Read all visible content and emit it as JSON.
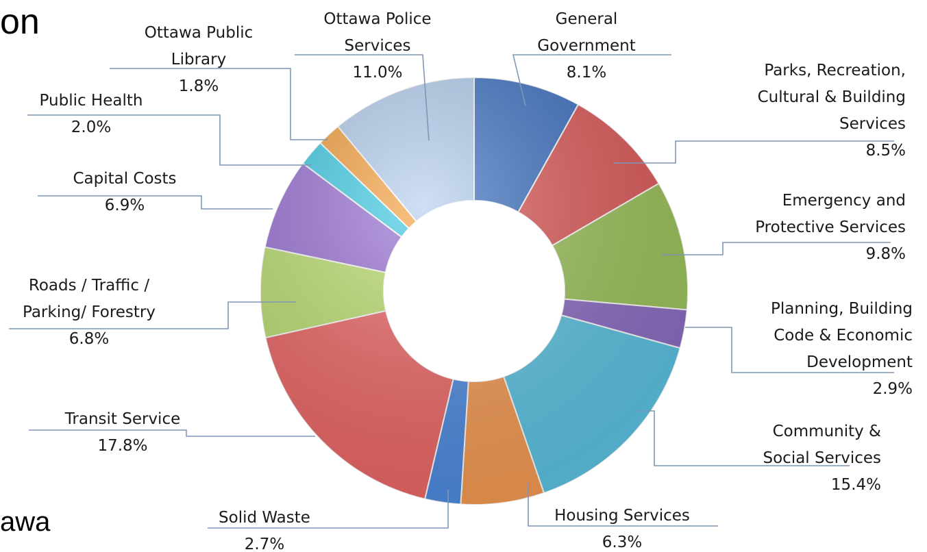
{
  "fragments": {
    "top": "on",
    "bottom": "awa"
  },
  "chart_data": {
    "type": "pie",
    "style": "donut",
    "title": "",
    "legend": "none",
    "slices": [
      {
        "name": "General Government",
        "value": 8.1,
        "label": "8.1%",
        "color": "#3f73c4"
      },
      {
        "name": "Parks, Recreation, Cultural & Building Services",
        "value": 8.5,
        "label": "8.5%",
        "color": "#e05a5a"
      },
      {
        "name": "Emergency and Protective Services",
        "value": 9.8,
        "label": "9.8%",
        "color": "#9cc45a"
      },
      {
        "name": "Planning, Building Code & Economic Development",
        "value": 2.9,
        "label": "2.9%",
        "color": "#8c6cc4"
      },
      {
        "name": "Community & Social Services",
        "value": 15.4,
        "label": "15.4%",
        "color": "#5cc3e3"
      },
      {
        "name": "Housing Services",
        "value": 6.3,
        "label": "6.3%",
        "color": "#f59a52"
      },
      {
        "name": "Solid Waste",
        "value": 2.7,
        "label": "2.7%",
        "color": "#4d8ae0"
      },
      {
        "name": "Transit Service",
        "value": 17.8,
        "label": "17.8%",
        "color": "#ee6666"
      },
      {
        "name": "Roads / Traffic / Parking/ Forestry",
        "value": 6.8,
        "label": "6.8%",
        "color": "#bde070"
      },
      {
        "name": "Capital Costs",
        "value": 6.9,
        "label": "6.9%",
        "color": "#9b72d6"
      },
      {
        "name": "Public Health",
        "value": 2.0,
        "label": "2.0%",
        "color": "#3fcde6"
      },
      {
        "name": "Ottawa Public Library",
        "value": 1.8,
        "label": "1.8%",
        "color": "#f7a23f"
      },
      {
        "name": "Ottawa Police Services",
        "value": 11.0,
        "label": "11.0%",
        "color": "#b5cff0"
      }
    ]
  }
}
